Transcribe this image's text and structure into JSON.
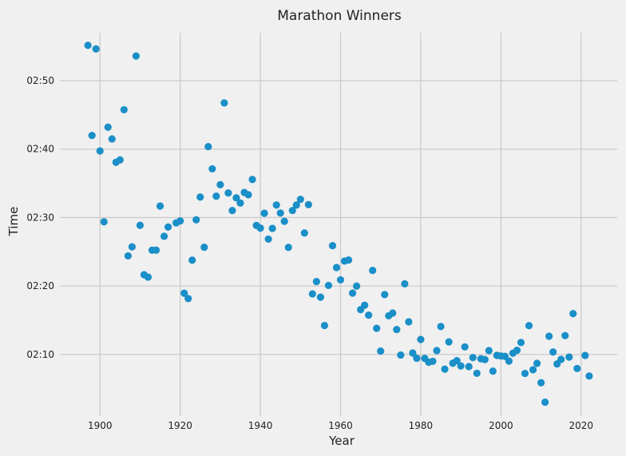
{
  "chart_data": {
    "type": "scatter",
    "title": "Marathon Winners",
    "xlabel": "Year",
    "ylabel": "Time",
    "xlim": [
      1890,
      2029
    ],
    "ylim": [
      "02:01:00",
      "02:57:00"
    ],
    "x_ticks": [
      1900,
      1920,
      1940,
      1960,
      1980,
      2000,
      2020
    ],
    "y_ticks": [
      "02:10",
      "02:20",
      "02:30",
      "02:40",
      "02:50"
    ],
    "grid": true,
    "marker_color": "#1a8fc8",
    "background_color": "#f0f0f0",
    "grid_color": "#cbcbcb",
    "series": [
      {
        "x": [
          1897,
          1898,
          1899,
          1900,
          1901,
          1902,
          1903,
          1904,
          1905,
          1906,
          1907,
          1908,
          1909,
          1910,
          1911,
          1912,
          1913,
          1914,
          1915,
          1916,
          1917,
          1919,
          1920,
          1921,
          1922,
          1923,
          1924,
          1925,
          1926,
          1927,
          1928,
          1929,
          1930,
          1931,
          1932,
          1933,
          1934,
          1935,
          1936,
          1937,
          1938,
          1939,
          1940,
          1941,
          1942,
          1943,
          1944,
          1945,
          1946,
          1947,
          1948,
          1949,
          1950,
          1951,
          1952,
          1953,
          1954,
          1955,
          1956,
          1957,
          1958,
          1959,
          1960,
          1961,
          1962,
          1963,
          1964,
          1965,
          1966,
          1967,
          1968,
          1969,
          1970,
          1971,
          1972,
          1973,
          1974,
          1975,
          1976,
          1977,
          1978,
          1979,
          1980,
          1981,
          1982,
          1983,
          1984,
          1985,
          1986,
          1987,
          1988,
          1989,
          1990,
          1991,
          1992,
          1993,
          1994,
          1995,
          1996,
          1997,
          1998,
          1999,
          2000,
          2001,
          2002,
          2003,
          2004,
          2005,
          2006,
          2007,
          2008,
          2009,
          2010,
          2011,
          2012,
          2013,
          2014,
          2015,
          2016,
          2017,
          2018,
          2019,
          2021,
          2022
        ],
        "y": [
          "02:55:10",
          "02:42:00",
          "02:54:38",
          "02:39:44",
          "02:29:23",
          "02:43:12",
          "02:41:29",
          "02:38:04",
          "02:38:25",
          "02:45:45",
          "02:24:24",
          "02:25:43",
          "02:53:36",
          "02:28:52",
          "02:21:39",
          "02:21:18",
          "02:25:14",
          "02:25:14",
          "02:31:41",
          "02:27:16",
          "02:28:37",
          "02:29:13",
          "02:29:31",
          "02:18:57",
          "02:18:10",
          "02:23:47",
          "02:29:40",
          "02:33:00",
          "02:25:40",
          "02:40:22",
          "02:37:07",
          "02:33:08",
          "02:34:48",
          "02:46:45",
          "02:33:36",
          "02:31:02",
          "02:32:53",
          "02:32:07",
          "02:33:40",
          "02:33:20",
          "02:35:34",
          "02:28:51",
          "02:28:28",
          "02:30:38",
          "02:26:51",
          "02:28:25",
          "02:31:50",
          "02:30:40",
          "02:29:27",
          "02:25:39",
          "02:31:02",
          "02:31:50",
          "02:32:40",
          "02:27:45",
          "02:31:53",
          "02:18:51",
          "02:20:39",
          "02:18:22",
          "02:14:14",
          "02:20:05",
          "02:25:54",
          "02:22:42",
          "02:20:54",
          "02:23:39",
          "02:23:48",
          "02:18:58",
          "02:19:59",
          "02:16:33",
          "02:17:11",
          "02:15:45",
          "02:22:17",
          "02:13:49",
          "02:10:30",
          "02:18:45",
          "02:15:39",
          "02:16:03",
          "02:13:39",
          "02:09:55",
          "02:20:19",
          "02:14:46",
          "02:10:13",
          "02:09:27",
          "02:12:11",
          "02:09:26",
          "02:08:52",
          "02:09:00",
          "02:10:34",
          "02:14:05",
          "02:07:51",
          "02:11:50",
          "02:08:43",
          "02:09:06",
          "02:08:19",
          "02:11:06",
          "02:08:14",
          "02:09:33",
          "02:07:15",
          "02:09:22",
          "02:09:15",
          "02:10:34",
          "02:07:34",
          "02:09:52",
          "02:09:47",
          "02:09:43",
          "02:09:02",
          "02:10:11",
          "02:10:37",
          "02:11:45",
          "02:07:14",
          "02:14:13",
          "02:07:46",
          "02:08:42",
          "02:05:52",
          "02:03:02",
          "02:12:40",
          "02:10:22",
          "02:08:37",
          "02:09:17",
          "02:12:45",
          "02:09:37",
          "02:15:58",
          "02:07:57",
          "02:09:51",
          "02:06:51"
        ]
      }
    ]
  }
}
